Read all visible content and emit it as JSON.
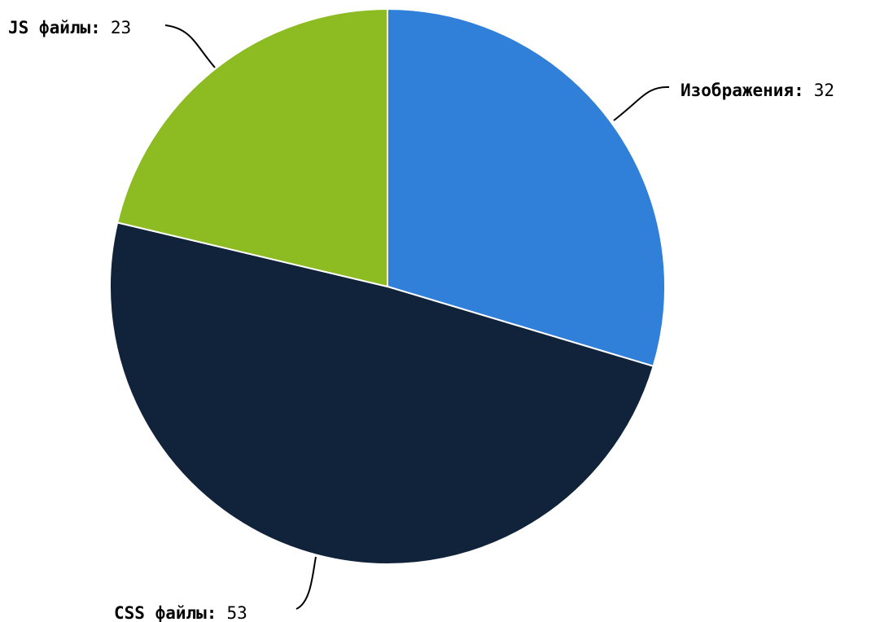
{
  "chart_data": {
    "type": "pie",
    "title": "",
    "slices": [
      {
        "label": "Изображения",
        "value": 32,
        "color": "#3080d9"
      },
      {
        "label": "CSS файлы",
        "value": 53,
        "color": "#10233a"
      },
      {
        "label": "JS файлы",
        "value": 23,
        "color": "#8cbb22"
      }
    ],
    "label_format": "name: value",
    "start_angle": "12 o'clock",
    "direction": "clockwise"
  }
}
